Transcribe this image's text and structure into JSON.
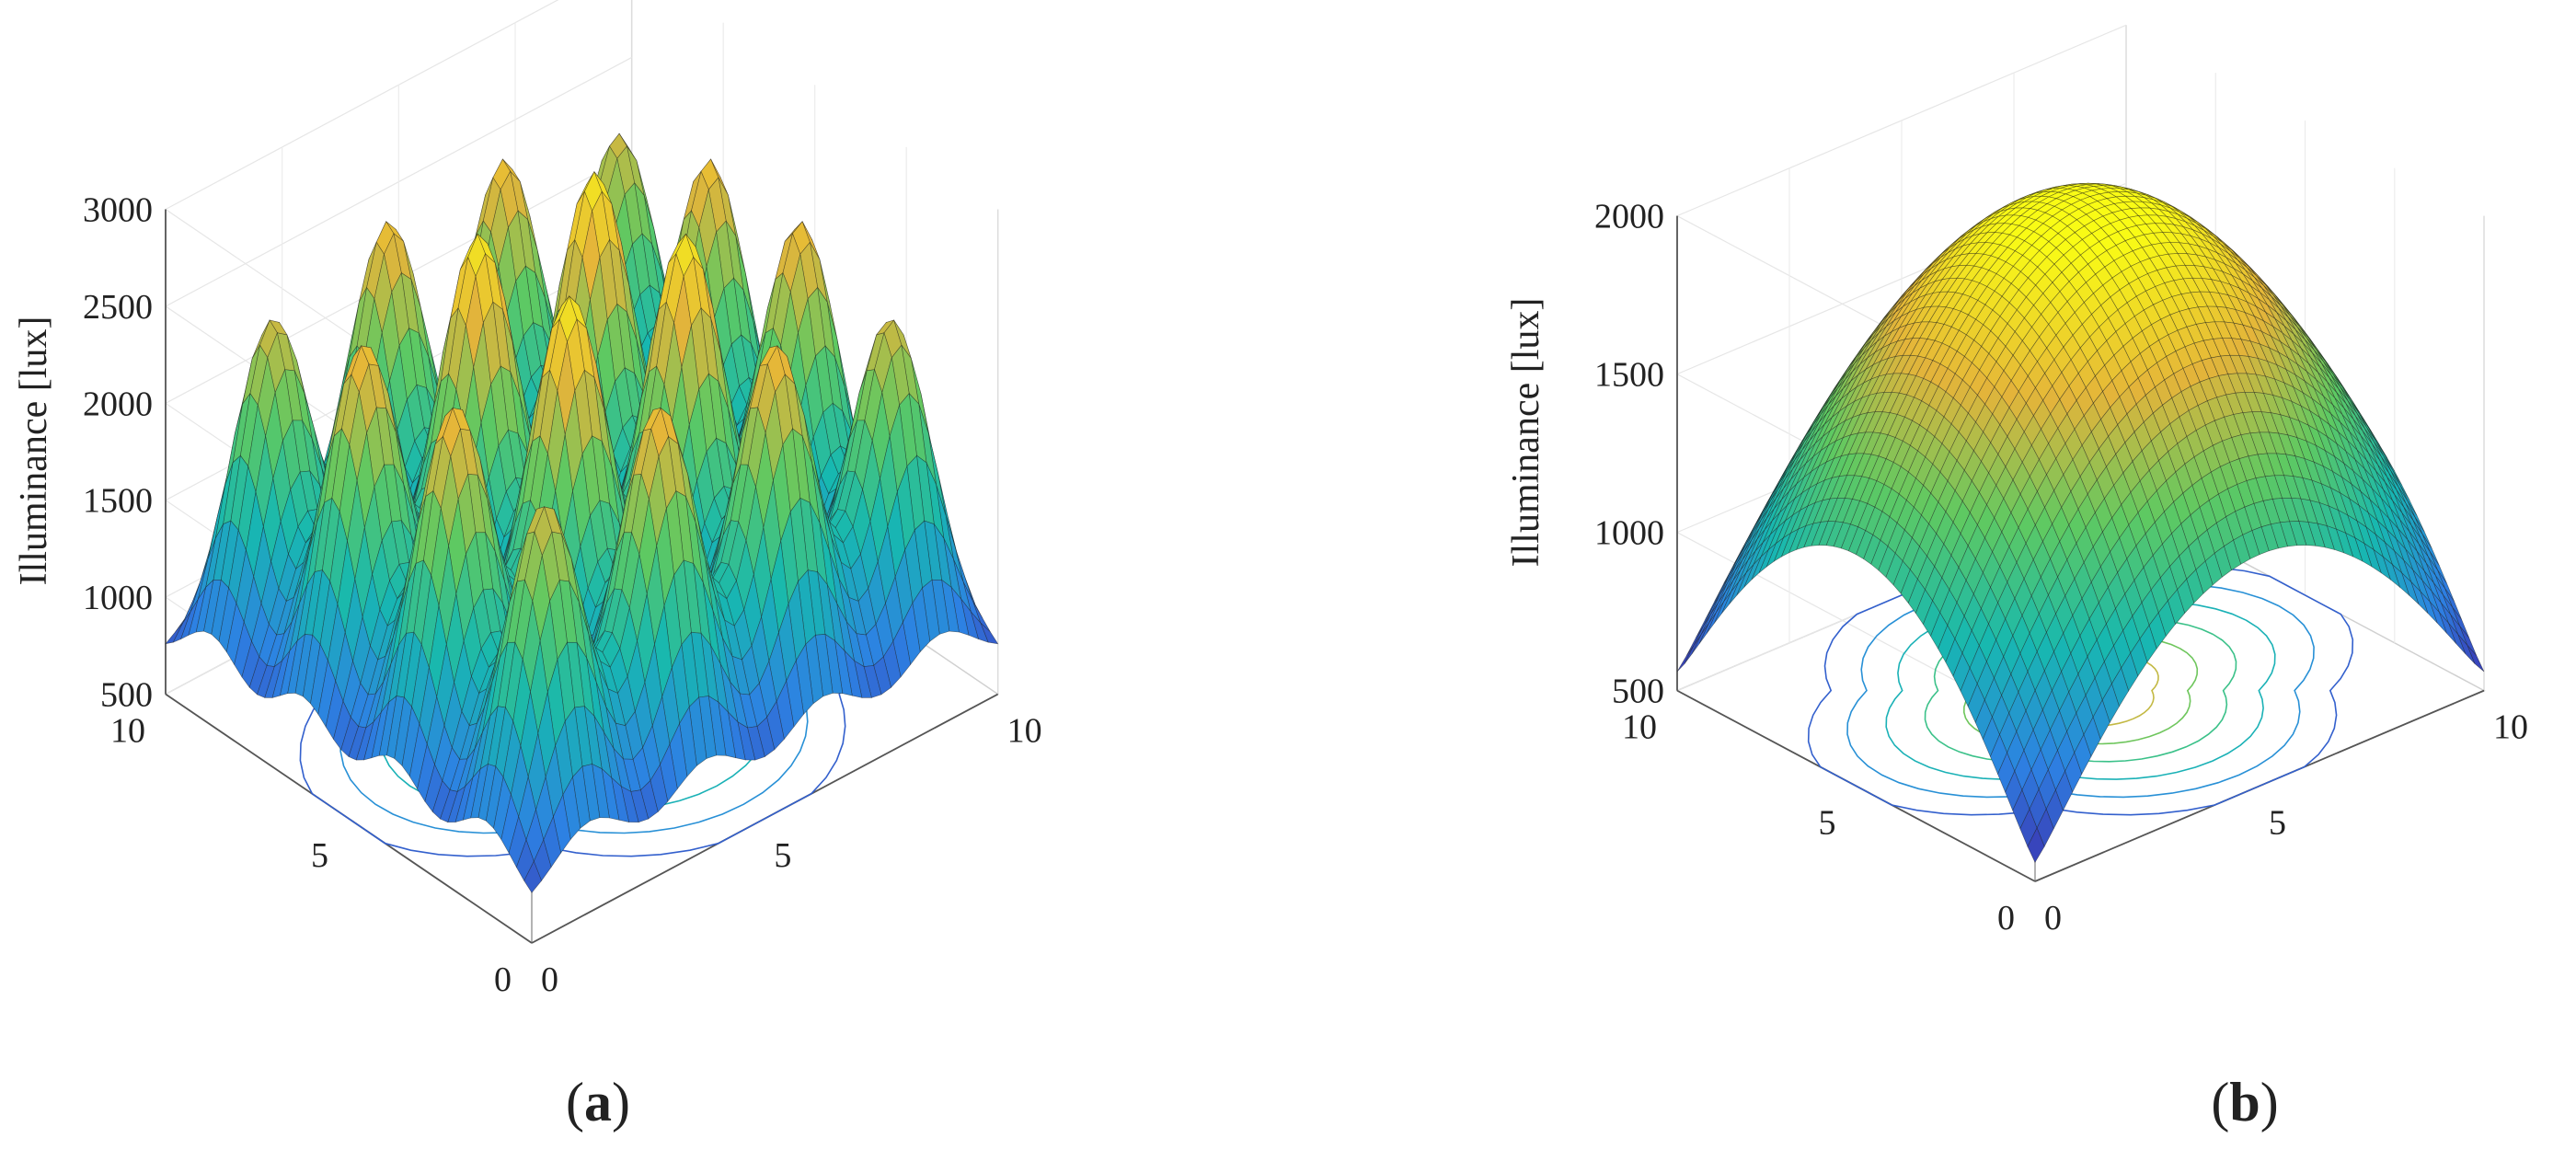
{
  "chart_data": [
    {
      "type": "surface",
      "panel_label": "a",
      "zlabel": "Illuminance [lux]",
      "xlim": [
        0,
        10
      ],
      "ylim": [
        0,
        10
      ],
      "zlim": [
        500,
        3000
      ],
      "x_ticks": [
        "0",
        "5",
        "10"
      ],
      "y_ticks": [
        "0",
        "5",
        "10"
      ],
      "z_ticks": [
        "500",
        "1000",
        "1500",
        "2000",
        "2500",
        "3000"
      ],
      "description_function": "array of 4x4 Gaussian peaks; corner minimum ~700 lux, peak maximum ~2950 lux",
      "peaks_per_axis": 4,
      "corner_value": 700,
      "max_value": 2950,
      "colormap": [
        "#3e26a8",
        "#2d82e3",
        "#17b8b0",
        "#5ec962",
        "#e4b43a",
        "#f9fb15"
      ],
      "contour_projection": true,
      "grid": true
    },
    {
      "type": "surface",
      "panel_label": "b",
      "zlabel": "Illuminance [lux]",
      "xlim": [
        0,
        10
      ],
      "ylim": [
        0,
        10
      ],
      "zlim": [
        500,
        2000
      ],
      "x_ticks": [
        "0",
        "5",
        "10"
      ],
      "y_ticks": [
        "0",
        "5",
        "10"
      ],
      "z_ticks": [
        "500",
        "1000",
        "1500",
        "2000"
      ],
      "description_function": "single smooth dome; corner minimum ~560 lux, center maximum ~2050 lux",
      "corner_value": 560,
      "max_value": 2050,
      "colormap": [
        "#3e26a8",
        "#2d82e3",
        "#17b8b0",
        "#5ec962",
        "#e4b43a",
        "#f9fb15"
      ],
      "contour_projection": true,
      "grid": true
    }
  ]
}
